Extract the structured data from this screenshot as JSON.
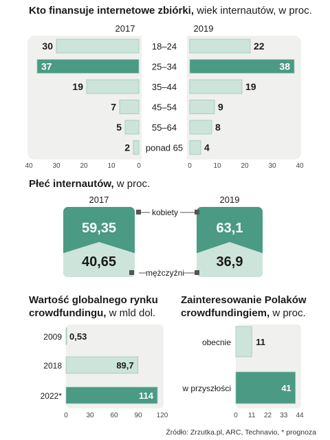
{
  "charts": {
    "age": {
      "title_bold": "Kto finansuje internetowe zbiórki,",
      "title_rest": " wiek internautów, w proc."
    },
    "gender": {
      "title_bold": "Płeć internautów,",
      "title_rest": " w proc."
    },
    "market": {
      "title_line1": "Wartość globalnego rynku",
      "title_line2_bold": "crowdfundingu,",
      "title_line2_rest": " w mld dol."
    },
    "interest": {
      "title_line1": "Zainteresowanie Polaków",
      "title_line2_bold": "crowdfundingiem,",
      "title_line2_rest": " w proc."
    }
  },
  "source": "Źródło: Zrzutka.pl, ARC, Technavio, * prognoza",
  "colors": {
    "dark": "#4a9a84",
    "light": "#cde4da",
    "panel": "#f0f0ee",
    "white": "#ffffff",
    "text": "#1a1a1a"
  },
  "chart_data": [
    {
      "type": "bar",
      "categories": [
        "18–24",
        "25–34",
        "35–44",
        "45–54",
        "55–64",
        "ponad 65"
      ],
      "series": [
        {
          "name": "2017",
          "values": [
            30,
            37,
            19,
            7,
            5,
            2
          ]
        },
        {
          "name": "2019",
          "values": [
            22,
            38,
            19,
            9,
            8,
            4
          ]
        }
      ],
      "highlight_category": "25–34",
      "xlim": [
        0,
        40
      ],
      "xticks": [
        40,
        30,
        20,
        10,
        0
      ]
    },
    {
      "type": "bar",
      "series": [
        {
          "name": "2017",
          "values": {
            "kobiety": 59.35,
            "mężczyźni": 40.65
          },
          "labels": {
            "kobiety": "59,35",
            "mężczyźni": "40,65"
          }
        },
        {
          "name": "2019",
          "values": {
            "kobiety": 63.1,
            "mężczyźni": 36.9
          },
          "labels": {
            "kobiety": "63,1",
            "mężczyźni": "36,9"
          }
        }
      ],
      "category_labels": [
        "kobiety",
        "mężczyźni"
      ]
    },
    {
      "type": "bar",
      "categories": [
        "2009",
        "2018",
        "2022*"
      ],
      "values": [
        0.53,
        89.7,
        114
      ],
      "value_labels": [
        "0,53",
        "89,7",
        "114"
      ],
      "highlight_category": "2022*",
      "xlim": [
        0,
        120
      ],
      "xticks": [
        0,
        30,
        60,
        90,
        120
      ]
    },
    {
      "type": "bar",
      "categories": [
        "obecnie",
        "w przyszłości"
      ],
      "values": [
        11,
        41
      ],
      "value_labels": [
        "11",
        "41"
      ],
      "highlight_category": "w przyszłości",
      "xlim": [
        0,
        44
      ],
      "xticks": [
        0,
        11,
        22,
        33,
        44
      ]
    }
  ]
}
